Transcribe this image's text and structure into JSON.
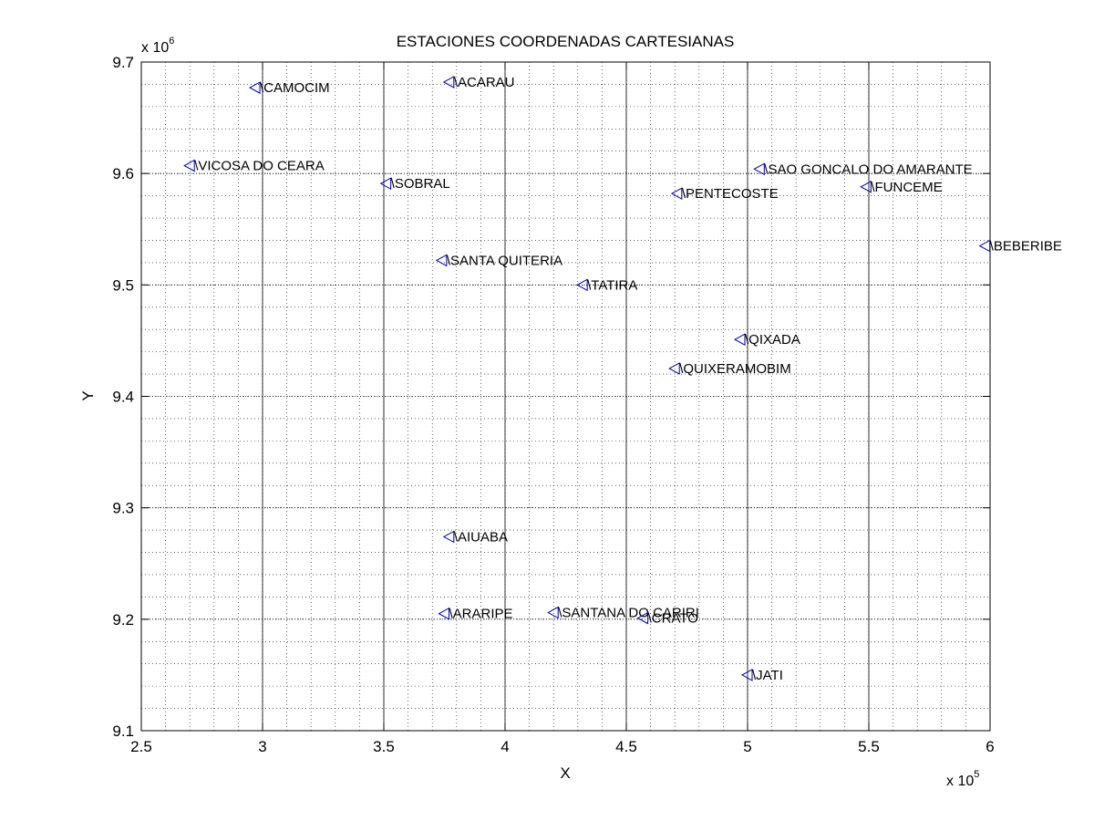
{
  "chart_data": {
    "type": "scatter",
    "title": "ESTACIONES COORDENADAS CARTESIANAS",
    "xlabel": "X",
    "ylabel": "Y",
    "x_exponent_label": "x 10",
    "x_exponent": "5",
    "y_exponent_label": "x 10",
    "y_exponent": "6",
    "xlim": [
      250000,
      600000
    ],
    "ylim": [
      9100000,
      9700000
    ],
    "xticks": [
      250000,
      300000,
      350000,
      400000,
      450000,
      500000,
      550000,
      600000
    ],
    "xtick_labels": [
      "2.5",
      "3",
      "3.5",
      "4",
      "4.5",
      "5",
      "5.5",
      "6"
    ],
    "yticks": [
      9100000,
      9200000,
      9300000,
      9400000,
      9500000,
      9600000,
      9700000
    ],
    "ytick_labels": [
      "9.1",
      "9.2",
      "9.3",
      "9.4",
      "9.5",
      "9.6",
      "9.7"
    ],
    "grid": "major and minor",
    "marker": "triangle-left",
    "marker_color": "#0000aa",
    "points": [
      {
        "label": "\\CAMOCIM",
        "x": 297000,
        "y": 9677000
      },
      {
        "label": "\\ACARAU",
        "x": 377000,
        "y": 9682000
      },
      {
        "label": "\\VICOSA DO CEARA",
        "x": 270000,
        "y": 9607000
      },
      {
        "label": "\\SOBRAL",
        "x": 351000,
        "y": 9591000
      },
      {
        "label": "\\SAO GONCALO DO AMARANTE",
        "x": 505000,
        "y": 9604000
      },
      {
        "label": "\\FUNCEME",
        "x": 549000,
        "y": 9588000
      },
      {
        "label": "\\PENTECOSTE",
        "x": 471000,
        "y": 9582000
      },
      {
        "label": "\\BEBERIBE",
        "x": 598000,
        "y": 9535000
      },
      {
        "label": "\\SANTA QUITERIA",
        "x": 374000,
        "y": 9522000
      },
      {
        "label": "\\TATIRA",
        "x": 432000,
        "y": 9500000
      },
      {
        "label": "\\QIXADA",
        "x": 497000,
        "y": 9451000
      },
      {
        "label": "\\QUIXERAMOBIM",
        "x": 470000,
        "y": 9425000
      },
      {
        "label": "\\AIUABA",
        "x": 377000,
        "y": 9274000
      },
      {
        "label": "\\ARARIPE",
        "x": 375000,
        "y": 9205000
      },
      {
        "label": "\\SANTANA DO CARIRI",
        "x": 420000,
        "y": 9206000
      },
      {
        "label": "\\CRATO",
        "x": 457000,
        "y": 9201000
      },
      {
        "label": "\\JATI",
        "x": 500000,
        "y": 9150000
      }
    ]
  }
}
